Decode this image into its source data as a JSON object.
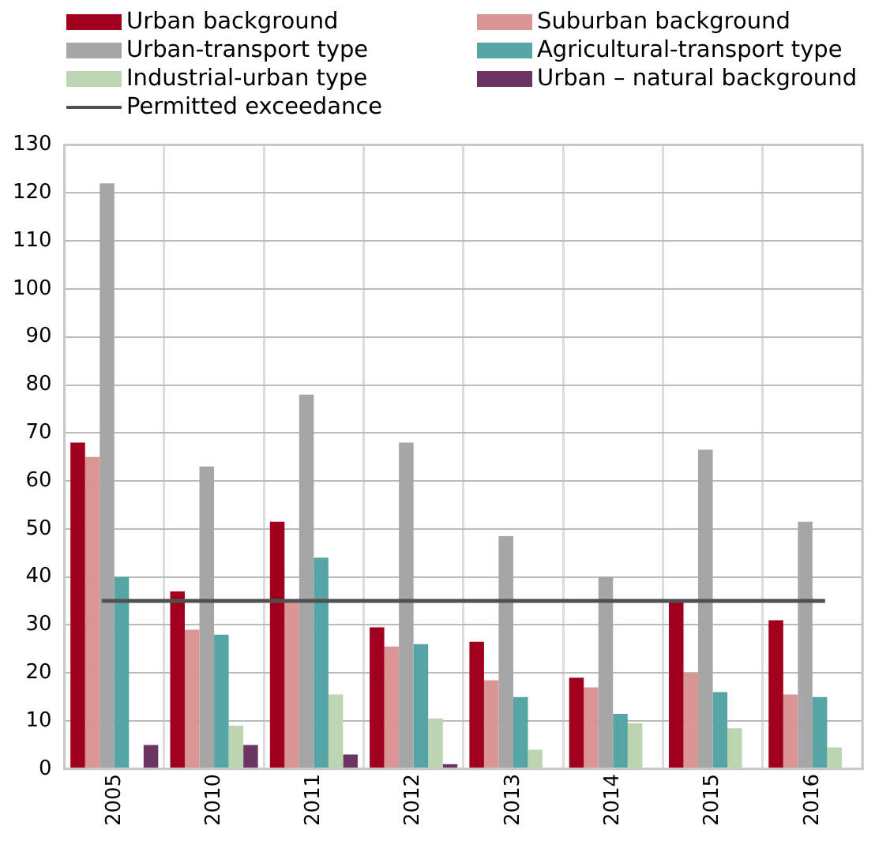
{
  "chart_data": {
    "type": "bar",
    "categories": [
      "2005",
      "2010",
      "2011",
      "2012",
      "2013",
      "2014",
      "2015",
      "2016"
    ],
    "series": [
      {
        "name": "Urban background",
        "color": "#a0001e",
        "values": [
          68,
          37,
          51.5,
          29.5,
          26.5,
          19,
          35,
          31
        ]
      },
      {
        "name": "Suburban background",
        "color": "#d99694",
        "values": [
          65,
          29,
          35,
          25.5,
          18.5,
          17,
          20,
          15.5
        ]
      },
      {
        "name": "Urban-transport type",
        "color": "#a6a6a6",
        "values": [
          122,
          63,
          78,
          68,
          48.5,
          40,
          66.5,
          51.5
        ]
      },
      {
        "name": "Agricultural-transport type",
        "color": "#55a5a5",
        "values": [
          40,
          28,
          44,
          26,
          15,
          11.5,
          16,
          15
        ]
      },
      {
        "name": "Industrial-urban type",
        "color": "#bcd5b0",
        "values": [
          null,
          9,
          15.5,
          10.5,
          4,
          9.5,
          8.5,
          4.5
        ]
      },
      {
        "name": "Urban – natural background",
        "color": "#6c3461",
        "values": [
          5,
          5,
          3,
          1,
          null,
          null,
          null,
          null
        ]
      }
    ],
    "ref_lines": [
      {
        "axis": "y",
        "value": 35,
        "label": "Permitted exceedance",
        "color": "#505050"
      }
    ],
    "ylim": [
      0,
      130
    ],
    "yticks": [
      0,
      10,
      20,
      30,
      40,
      50,
      60,
      70,
      80,
      90,
      100,
      110,
      120,
      130
    ],
    "grid": true,
    "legend": "top"
  }
}
